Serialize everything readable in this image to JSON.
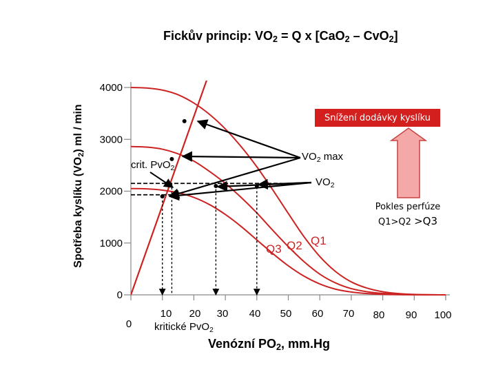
{
  "title": {
    "prefix": "Fickův princip:  VO",
    "s1": "2",
    "mid": " = Q x [CaO",
    "s2": "2",
    "dash": " – CvO",
    "s3": "2",
    "suffix": "]"
  },
  "ylabel": {
    "prefix": "Spotřeba kyslíku (VO",
    "sub": "2",
    "suffix": ") ml / min"
  },
  "xlabel": {
    "prefix": "Venózní PO",
    "sub": "2",
    "suffix": ", mm.Hg"
  },
  "kriticke": {
    "prefix": "kritické PvO",
    "sub": "2"
  },
  "crit_label": {
    "prefix": "crit. PvO",
    "sub": "2"
  },
  "vo2max_label": {
    "prefix": "VO",
    "sub": "2",
    "suffix": " max"
  },
  "vo2_label": {
    "prefix": "VO",
    "sub": "2"
  },
  "snizeni": "Snížení dodávky kyslíku",
  "pokles": {
    "line1": "Pokles perfúze",
    "line2a": "Q1>Q2 ",
    "line2b": ">Q3"
  },
  "colors": {
    "curve": "#cc2222",
    "box_fill": "#d41f1f",
    "arrow_fill": "#f4a8a8",
    "arrow_stroke": "#c84040",
    "arrow_black": "#000000"
  },
  "chart_data": {
    "type": "line",
    "xlim": [
      0,
      100
    ],
    "ylim": [
      0,
      4000
    ],
    "x_tick_labels": [
      "0",
      "10",
      "20",
      "30",
      "40",
      "50",
      "60",
      "70",
      "80",
      "90",
      "100"
    ],
    "x_tick_values": [
      0,
      10,
      20,
      30,
      40,
      50,
      60,
      70,
      80,
      90,
      100
    ],
    "y_tick_labels": [
      "0",
      "1000",
      "2000",
      "3000",
      "4000"
    ],
    "y_tick_values": [
      0,
      1000,
      2000,
      3000,
      4000
    ],
    "series": [
      {
        "name": "Q1",
        "label": "Q1",
        "points": [
          [
            0,
            4000
          ],
          [
            5,
            3990
          ],
          [
            10,
            3950
          ],
          [
            15,
            3860
          ],
          [
            20,
            3700
          ],
          [
            25,
            3480
          ],
          [
            30,
            3200
          ],
          [
            35,
            2860
          ],
          [
            40,
            2470
          ],
          [
            45,
            2030
          ],
          [
            50,
            1570
          ],
          [
            55,
            1120
          ],
          [
            60,
            740
          ],
          [
            65,
            450
          ],
          [
            70,
            250
          ],
          [
            75,
            130
          ],
          [
            80,
            60
          ],
          [
            85,
            25
          ],
          [
            90,
            8
          ],
          [
            95,
            2
          ],
          [
            100,
            0
          ]
        ]
      },
      {
        "name": "Q2",
        "label": "Q2",
        "points": [
          [
            0,
            2860
          ],
          [
            5,
            2850
          ],
          [
            10,
            2810
          ],
          [
            15,
            2720
          ],
          [
            20,
            2580
          ],
          [
            25,
            2380
          ],
          [
            30,
            2150
          ],
          [
            35,
            1880
          ],
          [
            40,
            1580
          ],
          [
            45,
            1250
          ],
          [
            50,
            930
          ],
          [
            55,
            640
          ],
          [
            60,
            400
          ],
          [
            65,
            230
          ],
          [
            70,
            120
          ],
          [
            75,
            60
          ],
          [
            80,
            28
          ],
          [
            85,
            12
          ],
          [
            90,
            4
          ],
          [
            95,
            1
          ],
          [
            100,
            0
          ]
        ]
      },
      {
        "name": "Q3",
        "label": "Q3",
        "points": [
          [
            0,
            2050
          ],
          [
            5,
            2045
          ],
          [
            10,
            2020
          ],
          [
            15,
            1970
          ],
          [
            20,
            1880
          ],
          [
            25,
            1740
          ],
          [
            30,
            1550
          ],
          [
            35,
            1320
          ],
          [
            40,
            1060
          ],
          [
            45,
            800
          ],
          [
            50,
            560
          ],
          [
            55,
            360
          ],
          [
            60,
            210
          ],
          [
            65,
            110
          ],
          [
            70,
            55
          ],
          [
            75,
            25
          ],
          [
            80,
            10
          ],
          [
            85,
            4
          ],
          [
            90,
            1
          ],
          [
            95,
            0
          ],
          [
            100,
            0
          ]
        ]
      },
      {
        "name": "demand",
        "label": "",
        "points": [
          [
            0,
            0
          ],
          [
            10,
            1900
          ],
          [
            20,
            3500
          ],
          [
            25,
            4300
          ]
        ]
      }
    ],
    "markers": [
      {
        "name": "vo2max-q1",
        "x": 17,
        "y": 3350
      },
      {
        "name": "vo2max-q2",
        "x": 13,
        "y": 2620
      },
      {
        "name": "vo2max-q3",
        "x": 10,
        "y": 1900
      },
      {
        "name": "vo2-q1",
        "x": 40,
        "y": 2100
      },
      {
        "name": "vo2-q2",
        "x": 27,
        "y": 2100
      },
      {
        "name": "vo2-q3",
        "x": 10,
        "y": 1900
      }
    ],
    "dashed_lines": [
      {
        "name": "dash-vo2-h",
        "x0": 0,
        "y0": 2150,
        "x1": 48,
        "y1": 2150
      },
      {
        "name": "dash-crit-h",
        "x0": 0,
        "y0": 1930,
        "x1": 13,
        "y1": 1930
      },
      {
        "name": "dash-v10",
        "x0": 10,
        "y0": 1900,
        "x1": 10,
        "y1": 0
      },
      {
        "name": "dash-v13",
        "x0": 13,
        "y0": 2150,
        "x1": 13,
        "y1": 0
      },
      {
        "name": "dash-v27",
        "x0": 27,
        "y0": 2120,
        "x1": 27,
        "y1": 0
      },
      {
        "name": "dash-v40",
        "x0": 40,
        "y0": 2080,
        "x1": 40,
        "y1": 0
      }
    ]
  }
}
